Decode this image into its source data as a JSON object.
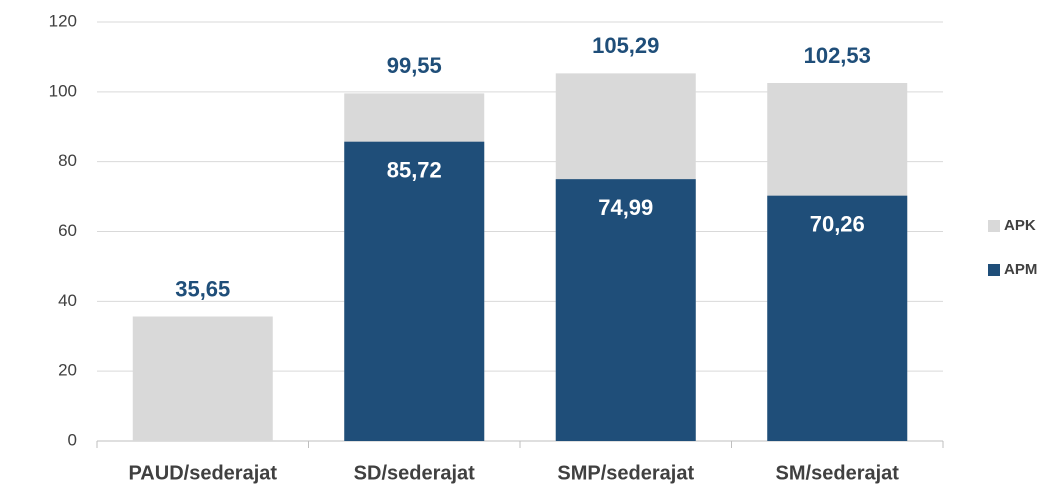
{
  "chart_data": {
    "type": "bar",
    "overlap": true,
    "categories": [
      "PAUD/sederajat",
      "SD/sederajat",
      "SMP/sederajat",
      "SM/sederajat"
    ],
    "series": [
      {
        "name": "APK",
        "color": "#d9d9d9",
        "values": [
          35.65,
          99.55,
          105.29,
          102.53
        ],
        "value_labels": [
          "35,65",
          "99,55",
          "105,29",
          "102,53"
        ],
        "label_color": "#1f4e79",
        "label_position": "above"
      },
      {
        "name": "APM",
        "color": "#1f4e79",
        "values": [
          null,
          85.72,
          74.99,
          70.26
        ],
        "value_labels": [
          null,
          "85,72",
          "74,99",
          "70,26"
        ],
        "label_color": "#ffffff",
        "label_position": "inside"
      }
    ],
    "ylim": [
      0,
      120
    ],
    "yticks": [
      0,
      20,
      40,
      60,
      80,
      100,
      120
    ],
    "grid": true,
    "legend": "right"
  }
}
